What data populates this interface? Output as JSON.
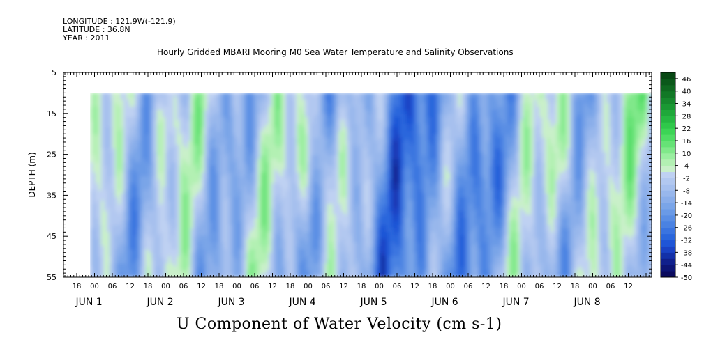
{
  "header": {
    "longitude": "LONGITUDE : 121.9W(-121.9)",
    "latitude": "LATITUDE : 36.8N",
    "year": "YEAR : 2011"
  },
  "title": "Hourly Gridded MBARI Mooring M0 Sea Water Temperature and Salinity Observations",
  "chart_data": {
    "type": "heatmap",
    "title": "Hourly Gridded MBARI Mooring M0 Sea Water Temperature and Salinity Observations",
    "xlabel": "U Component of Water Velocity (cm s-1)",
    "ylabel": "DEPTH (m)",
    "ylim": [
      55,
      5
    ],
    "y_ticks": [
      "5",
      "15",
      "25",
      "35",
      "45",
      "55"
    ],
    "x_hour_ticks": [
      "18",
      "00",
      "06",
      "12",
      "18",
      "00",
      "06",
      "12",
      "18",
      "00",
      "06",
      "12",
      "18",
      "00",
      "06",
      "12",
      "18",
      "00",
      "06",
      "12",
      "18",
      "00",
      "06",
      "12",
      "18",
      "00",
      "06",
      "12",
      "18",
      "00",
      "06",
      "12"
    ],
    "x_day_labels": [
      "JUN  1",
      "JUN  2",
      "JUN  3",
      "JUN  4",
      "JUN  5",
      "JUN  6",
      "JUN  7",
      "JUN  8"
    ],
    "colorbar": {
      "tick_labels": [
        "46",
        "40",
        "34",
        "28",
        "22",
        "16",
        "10",
        "4",
        "-2",
        "-8",
        "-14",
        "-20",
        "-26",
        "-32",
        "-38",
        "-44",
        "-50"
      ],
      "levels": [
        -50,
        -47,
        -44,
        -41,
        -38,
        -35,
        -32,
        -29,
        -26,
        -23,
        -20,
        -17,
        -14,
        -11,
        -8,
        -5,
        -2,
        1,
        4,
        7,
        10,
        13,
        16,
        19,
        22,
        25,
        28,
        31,
        34,
        37,
        40,
        43,
        46,
        49
      ],
      "colors_low_to_high": [
        "#0b0b5e",
        "#0d1575",
        "#10208c",
        "#1330a8",
        "#1a42c4",
        "#1f55d6",
        "#2a66dc",
        "#3a74e0",
        "#4a82e2",
        "#5a8ee4",
        "#6a9ae6",
        "#7aa5e8",
        "#8aaeea",
        "#98b7ec",
        "#a6c0ee",
        "#b2c8f0",
        "#bfd1f2",
        "#c9f0c9",
        "#b3f0b3",
        "#9aeea0",
        "#80e88a",
        "#66e276",
        "#4fdc64",
        "#3cd455",
        "#2fc84a",
        "#26b842",
        "#1fa83a",
        "#1a9833",
        "#16882d",
        "#127826",
        "#0f6820",
        "#0b581a",
        "#084814"
      ]
    }
  }
}
